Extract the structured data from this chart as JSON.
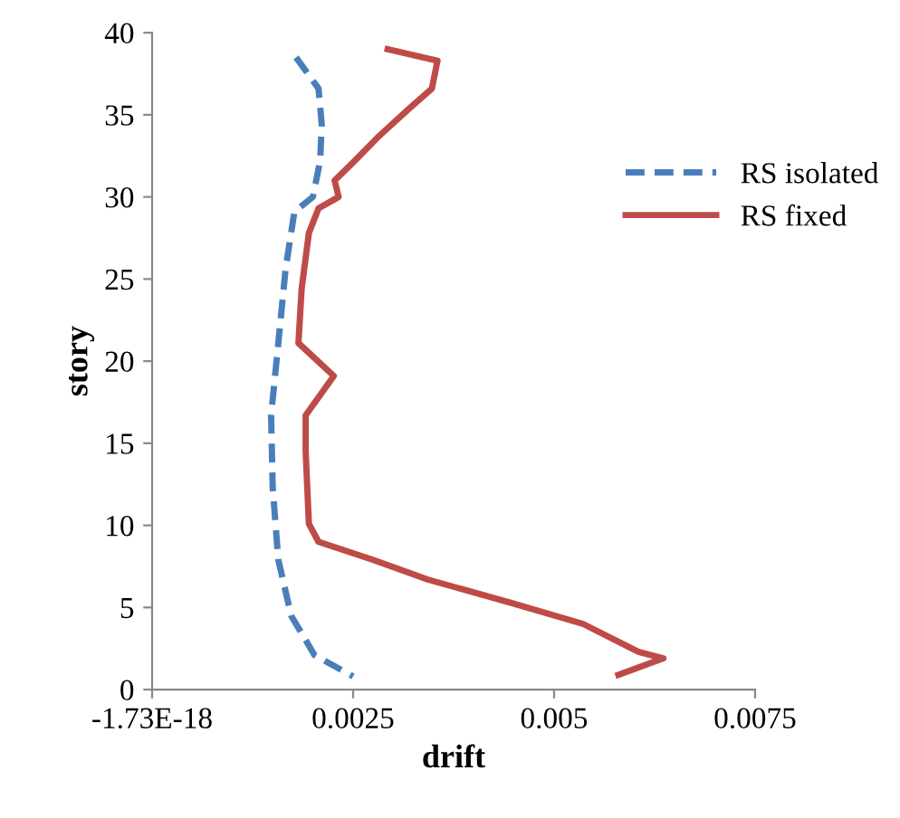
{
  "chart_data": {
    "type": "line",
    "xlabel": "drift",
    "ylabel": "story",
    "xlim": [
      -1.73e-18,
      0.0075
    ],
    "xticks": [
      {
        "value": -1.73e-18,
        "label": "-1.73E-18"
      },
      0.0025,
      0.005,
      0.0075
    ],
    "ylim": [
      0,
      40
    ],
    "yticks": [
      0,
      5,
      10,
      15,
      20,
      25,
      30,
      35,
      40
    ],
    "grid": false,
    "legend": "right",
    "marker": "none",
    "series": [
      {
        "name": "RS isolated",
        "color": "#4a7ebb",
        "line_style": "dashed",
        "x": [
          0.00179,
          0.00207,
          0.00211,
          0.00209,
          0.002,
          0.00177,
          0.00166,
          0.00157,
          0.00148,
          0.0015,
          0.00157,
          0.00173,
          0.00202,
          0.0025
        ],
        "values": [
          38.5,
          36.6,
          34.4,
          32.2,
          30.0,
          29.1,
          25.6,
          21.1,
          16.7,
          12.3,
          7.9,
          4.5,
          2.1,
          0.8
        ]
      },
      {
        "name": "RS fixed",
        "color": "#be4b48",
        "line_style": "solid",
        "x": [
          0.00293,
          0.00355,
          0.00348,
          0.00318,
          0.0028,
          0.00252,
          0.00227,
          0.00232,
          0.00207,
          0.00195,
          0.00186,
          0.00182,
          0.00226,
          0.00191,
          0.00191,
          0.00195,
          0.00207,
          0.00275,
          0.00343,
          0.00445,
          0.00536,
          0.00605,
          0.00636,
          0.0058
        ],
        "values": [
          39.0,
          38.3,
          36.6,
          35.3,
          33.6,
          32.2,
          31.0,
          30.0,
          29.3,
          27.8,
          24.4,
          21.1,
          19.1,
          16.7,
          14.5,
          10.1,
          9.0,
          7.9,
          6.7,
          5.3,
          4.0,
          2.3,
          1.9,
          0.9
        ]
      }
    ]
  }
}
